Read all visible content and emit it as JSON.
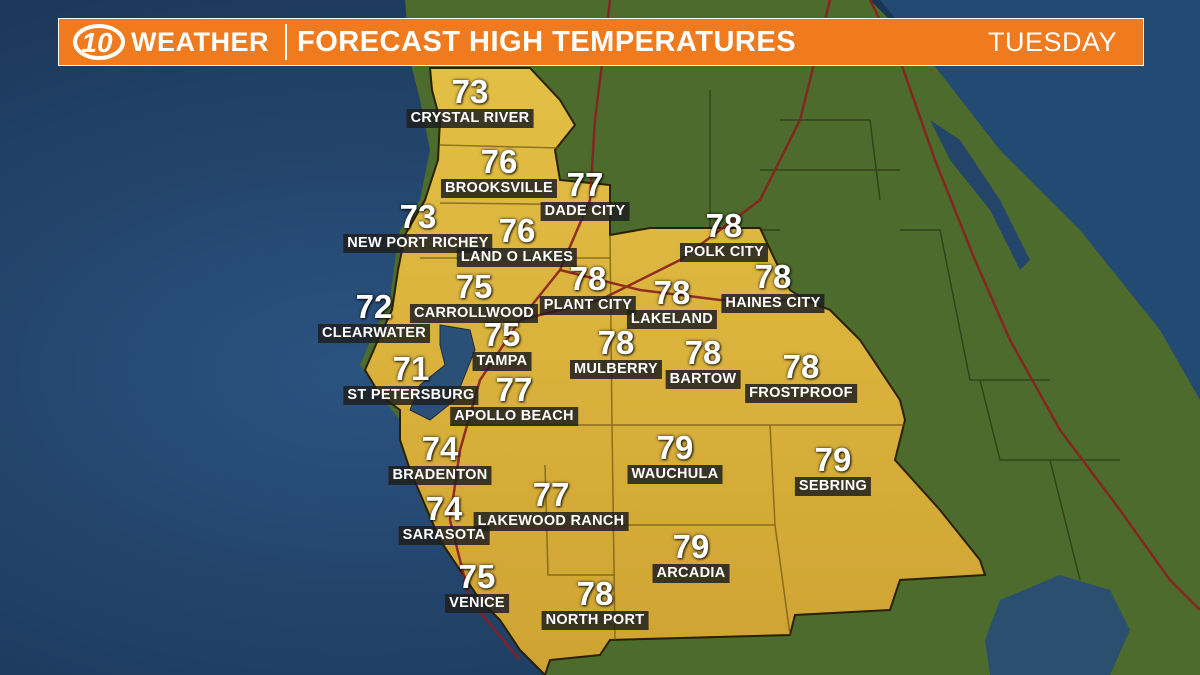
{
  "header": {
    "logo_number": "10",
    "brand": "WEATHER",
    "title": "FORECAST HIGH TEMPERATURES",
    "day": "TUESDAY"
  },
  "colors": {
    "header_orange": "#f07a1e",
    "forecast_region": "#d9b03a",
    "water": "#1f3d62",
    "land": "#4d6b2c",
    "roads": "#8a1f1f",
    "label_background": "#1e1e1e"
  },
  "locations": [
    {
      "city": "CRYSTAL RIVER",
      "temp": "73"
    },
    {
      "city": "BROOKSVILLE",
      "temp": "76"
    },
    {
      "city": "DADE CITY",
      "temp": "77"
    },
    {
      "city": "NEW PORT RICHEY",
      "temp": "73"
    },
    {
      "city": "LAND O LAKES",
      "temp": "76"
    },
    {
      "city": "POLK CITY",
      "temp": "78"
    },
    {
      "city": "PLANT CITY",
      "temp": "78"
    },
    {
      "city": "CARROLLWOOD",
      "temp": "75"
    },
    {
      "city": "HAINES CITY",
      "temp": "78"
    },
    {
      "city": "CLEARWATER",
      "temp": "72"
    },
    {
      "city": "LAKELAND",
      "temp": "78"
    },
    {
      "city": "TAMPA",
      "temp": "75"
    },
    {
      "city": "MULBERRY",
      "temp": "78"
    },
    {
      "city": "BARTOW",
      "temp": "78"
    },
    {
      "city": "FROSTPROOF",
      "temp": "78"
    },
    {
      "city": "ST PETERSBURG",
      "temp": "71"
    },
    {
      "city": "APOLLO BEACH",
      "temp": "77"
    },
    {
      "city": "BRADENTON",
      "temp": "74"
    },
    {
      "city": "WAUCHULA",
      "temp": "79"
    },
    {
      "city": "SEBRING",
      "temp": "79"
    },
    {
      "city": "LAKEWOOD RANCH",
      "temp": "77"
    },
    {
      "city": "SARASOTA",
      "temp": "74"
    },
    {
      "city": "ARCADIA",
      "temp": "79"
    },
    {
      "city": "VENICE",
      "temp": "75"
    },
    {
      "city": "NORTH PORT",
      "temp": "78"
    }
  ]
}
